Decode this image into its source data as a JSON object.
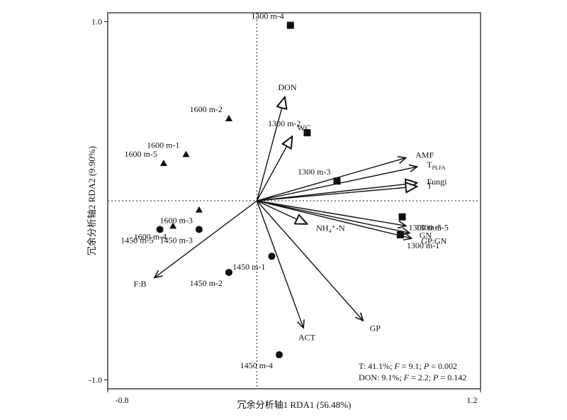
{
  "chart_data": {
    "type": "scatter",
    "subtype": "rda_biplot",
    "xlabel": "冗余分析轴1 RDA1 (56.48%)",
    "ylabel": "冗余分析轴2 RDA2 (9.90%)",
    "xlim": [
      -0.8,
      1.2
    ],
    "ylim": [
      -1.05,
      1.05
    ],
    "x_tick_labels": [
      {
        "value": -0.8,
        "text": "-0.8"
      },
      {
        "value": 1.2,
        "text": "1.2"
      }
    ],
    "y_tick_labels": [
      {
        "value": 1.0,
        "text": "1.0"
      },
      {
        "value": -1.0,
        "text": "-1.0"
      }
    ],
    "reference_lines": {
      "x": 0,
      "y": 0,
      "style": "dotted"
    },
    "sites": [
      {
        "label": "1300 m-4",
        "marker": "square",
        "x": 0.18,
        "y": 0.98
      },
      {
        "label": "1300 m-2",
        "marker": "square",
        "x": 0.27,
        "y": 0.38
      },
      {
        "label": "1300 m-3",
        "marker": "square",
        "x": 0.43,
        "y": 0.11
      },
      {
        "label": "1300 m-5",
        "marker": "square",
        "x": 0.78,
        "y": -0.09
      },
      {
        "label": "1300 m-1",
        "marker": "square",
        "x": 0.77,
        "y": -0.19
      },
      {
        "label": "1600 m-2",
        "marker": "triangle",
        "x": -0.15,
        "y": 0.46
      },
      {
        "label": "1600 m-1",
        "marker": "triangle",
        "x": -0.38,
        "y": 0.26
      },
      {
        "label": "1600 m-5",
        "marker": "triangle",
        "x": -0.5,
        "y": 0.21
      },
      {
        "label": "1600 m-3",
        "marker": "triangle",
        "x": -0.31,
        "y": -0.05
      },
      {
        "label": "1600 m-4",
        "marker": "triangle",
        "x": -0.45,
        "y": -0.14
      },
      {
        "label": "1450 m-5",
        "marker": "circle",
        "x": -0.52,
        "y": -0.16
      },
      {
        "label": "1450 m-3",
        "marker": "circle",
        "x": -0.31,
        "y": -0.16
      },
      {
        "label": "1450 m-1",
        "marker": "circle",
        "x": 0.08,
        "y": -0.31
      },
      {
        "label": "1450 m-2",
        "marker": "circle",
        "x": -0.15,
        "y": -0.4
      },
      {
        "label": "1450 m-4",
        "marker": "circle",
        "x": 0.12,
        "y": -0.86
      }
    ],
    "vectors": [
      {
        "label": "DON",
        "head": "open",
        "x": 0.15,
        "y": 0.58
      },
      {
        "label": "WC",
        "head": "open",
        "x": 0.19,
        "y": 0.36
      },
      {
        "label": "AMF",
        "head": "solid",
        "x": 0.8,
        "y": 0.24
      },
      {
        "label": "T",
        "label_sub": "PLFA",
        "head": "solid",
        "x": 0.86,
        "y": 0.19
      },
      {
        "label": "Fungi",
        "head": "open",
        "x": 0.86,
        "y": 0.1
      },
      {
        "label": "T",
        "head": "open",
        "x": 0.86,
        "y": 0.08
      },
      {
        "label": "1300 m-5",
        "head": "solid",
        "x": 0.8,
        "y": -0.14
      },
      {
        "label": "NH₄⁺-N",
        "head": "open",
        "x": 0.27,
        "y": -0.13
      },
      {
        "label": "GN",
        "head": "solid",
        "x": 0.82,
        "y": -0.18
      },
      {
        "label": "GP:GN",
        "head": "solid",
        "x": 0.83,
        "y": -0.21
      },
      {
        "label": "GP",
        "head": "solid",
        "x": 0.57,
        "y": -0.67
      },
      {
        "label": "ACT",
        "head": "solid",
        "x": 0.25,
        "y": -0.71
      },
      {
        "label": "F:B",
        "head": "solid",
        "x": -0.55,
        "y": -0.43
      }
    ],
    "annotations": [
      {
        "parts": [
          {
            "t": "T: 41.1%; "
          },
          {
            "t": "F",
            "i": true
          },
          {
            "t": " = 9.1; "
          },
          {
            "t": "P",
            "i": true
          },
          {
            "t": " = 0.002"
          }
        ]
      },
      {
        "parts": [
          {
            "t": "DON: 9.1%; "
          },
          {
            "t": "F",
            "i": true
          },
          {
            "t": " = 2.2; "
          },
          {
            "t": "P",
            "i": true
          },
          {
            "t": " = 0.142"
          }
        ]
      }
    ]
  }
}
